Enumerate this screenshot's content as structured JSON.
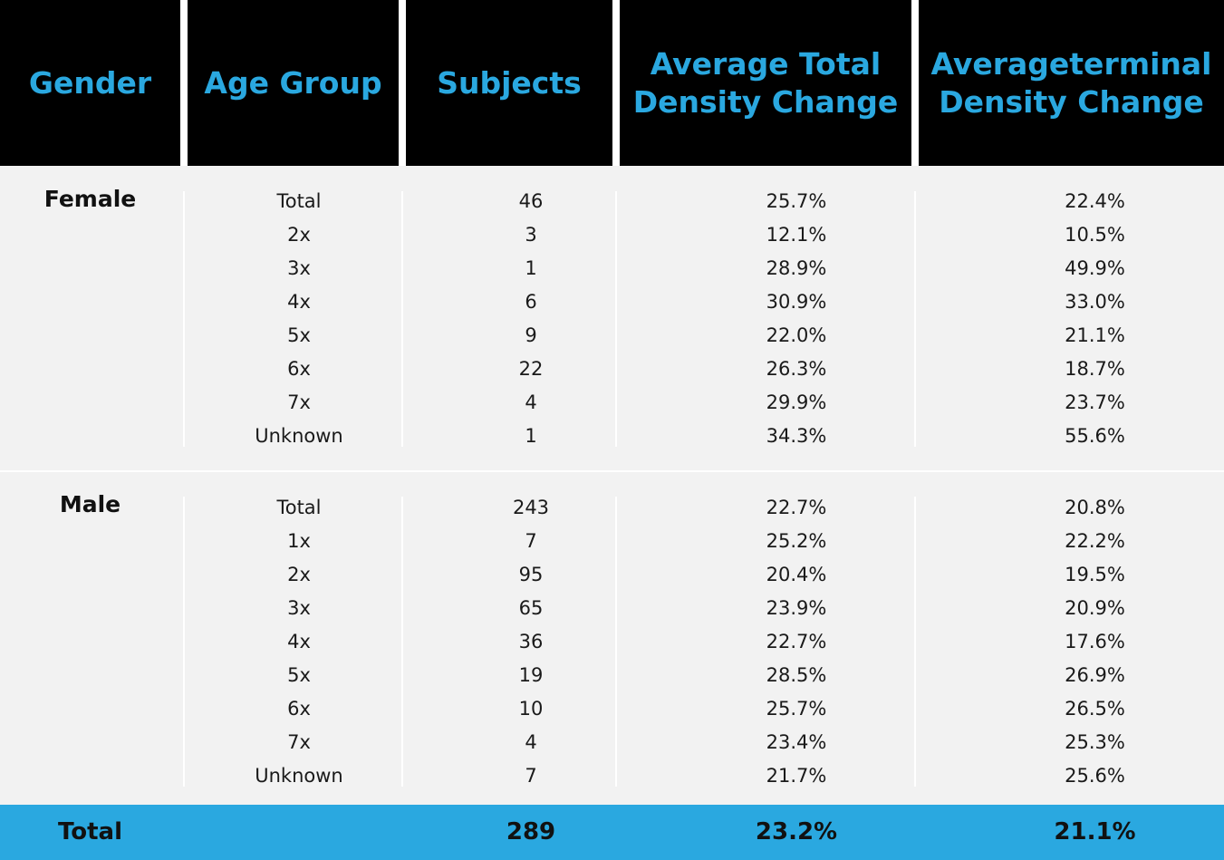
{
  "headers": {
    "gender": "Gender",
    "age_group": "Age Group",
    "subjects": "Subjects",
    "avg_total_line1": "Average Total",
    "avg_total_line2": "Density Change",
    "avg_term_line1": "Averageterminal",
    "avg_term_line2": "Density Change"
  },
  "female": {
    "label": "Female",
    "rows": [
      {
        "age": "Total",
        "subjects": "46",
        "avg_total": "25.7%",
        "avg_terminal": "22.4%"
      },
      {
        "age": "2x",
        "subjects": "3",
        "avg_total": "12.1%",
        "avg_terminal": "10.5%"
      },
      {
        "age": "3x",
        "subjects": "1",
        "avg_total": "28.9%",
        "avg_terminal": "49.9%"
      },
      {
        "age": "4x",
        "subjects": "6",
        "avg_total": "30.9%",
        "avg_terminal": "33.0%"
      },
      {
        "age": "5x",
        "subjects": "9",
        "avg_total": "22.0%",
        "avg_terminal": "21.1%"
      },
      {
        "age": "6x",
        "subjects": "22",
        "avg_total": "26.3%",
        "avg_terminal": "18.7%"
      },
      {
        "age": "7x",
        "subjects": "4",
        "avg_total": "29.9%",
        "avg_terminal": "23.7%"
      },
      {
        "age": "Unknown",
        "subjects": "1",
        "avg_total": "34.3%",
        "avg_terminal": "55.6%"
      }
    ]
  },
  "male": {
    "label": "Male",
    "rows": [
      {
        "age": "Total",
        "subjects": "243",
        "avg_total": "22.7%",
        "avg_terminal": "20.8%"
      },
      {
        "age": "1x",
        "subjects": "7",
        "avg_total": "25.2%",
        "avg_terminal": "22.2%"
      },
      {
        "age": "2x",
        "subjects": "95",
        "avg_total": "20.4%",
        "avg_terminal": "19.5%"
      },
      {
        "age": "3x",
        "subjects": "65",
        "avg_total": "23.9%",
        "avg_terminal": "20.9%"
      },
      {
        "age": "4x",
        "subjects": "36",
        "avg_total": "22.7%",
        "avg_terminal": "17.6%"
      },
      {
        "age": "5x",
        "subjects": "19",
        "avg_total": "28.5%",
        "avg_terminal": "26.9%"
      },
      {
        "age": "6x",
        "subjects": "10",
        "avg_total": "25.7%",
        "avg_terminal": "26.5%"
      },
      {
        "age": "7x",
        "subjects": "4",
        "avg_total": "23.4%",
        "avg_terminal": "25.3%"
      },
      {
        "age": "Unknown",
        "subjects": "7",
        "avg_total": "21.7%",
        "avg_terminal": "25.6%"
      }
    ]
  },
  "total": {
    "label": "Total",
    "subjects": "289",
    "avg_total": "23.2%",
    "avg_terminal": "21.1%"
  },
  "colors": {
    "accent": "#2aa8e0",
    "header_bg": "#000000",
    "body_bg": "#f2f2f2"
  }
}
